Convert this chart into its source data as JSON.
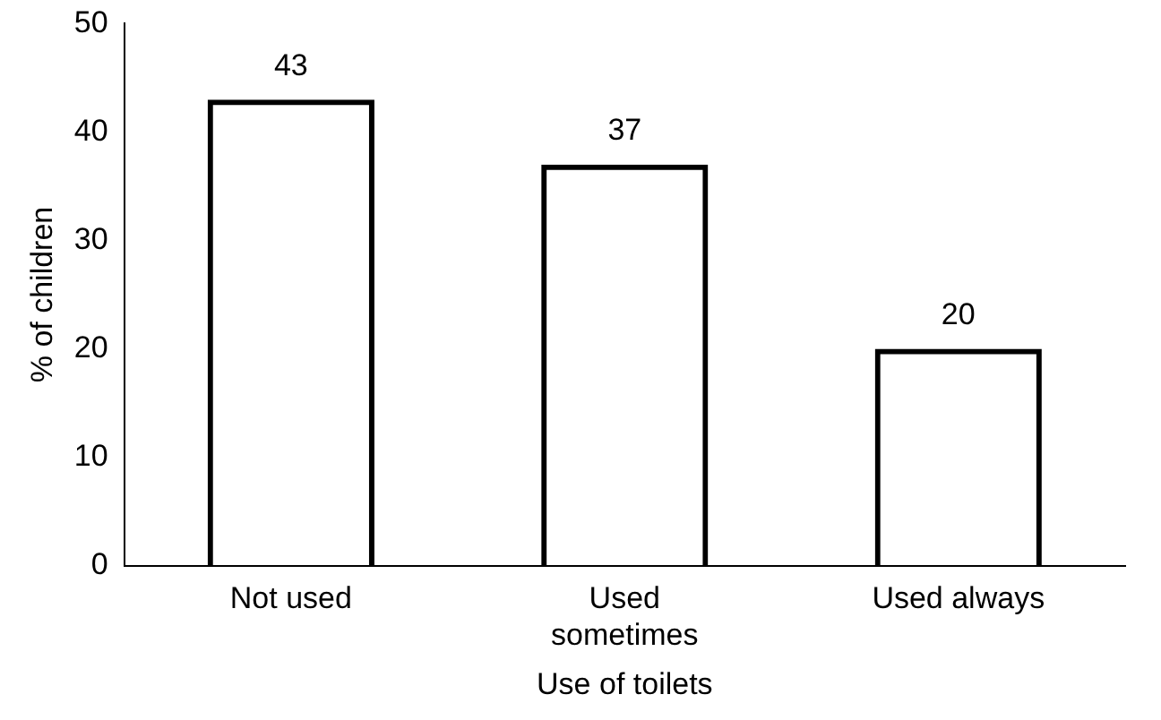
{
  "chart_data": {
    "type": "bar",
    "xlabel": "Use of toilets",
    "ylabel": "% of children",
    "categories": [
      "Not used",
      "Used sometimes",
      "Used always"
    ],
    "values": [
      43,
      37,
      20
    ],
    "color": "#000000",
    "ylim": [
      0,
      50
    ],
    "yticks": [
      0,
      10,
      20,
      30,
      40,
      50
    ],
    "grid": false,
    "legend": false,
    "data_labels": true
  }
}
